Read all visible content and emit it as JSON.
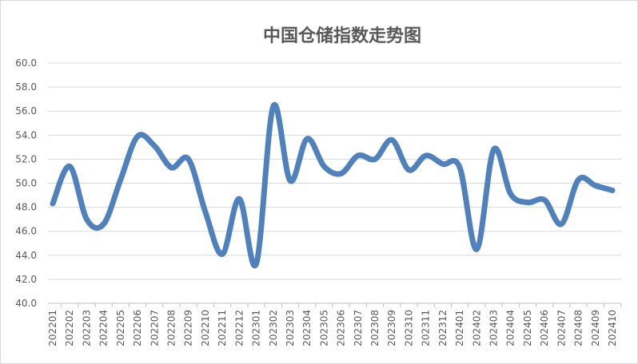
{
  "chart_data": {
    "type": "line",
    "title": "中国仓储指数走势图",
    "xlabel": "",
    "ylabel": "",
    "ylim": [
      40,
      60
    ],
    "ytick_step": 2,
    "grid": true,
    "smooth": true,
    "line_color": "#4f81bd",
    "categories": [
      "202201",
      "202202",
      "202203",
      "202204",
      "202205",
      "202206",
      "202207",
      "202208",
      "202209",
      "202210",
      "202211",
      "202212",
      "202301",
      "202302",
      "202303",
      "202304",
      "202305",
      "202306",
      "202307",
      "202308",
      "202309",
      "202310",
      "202311",
      "202312",
      "202401",
      "202402",
      "202403",
      "202404",
      "202405",
      "202406",
      "202407",
      "202408",
      "202409",
      "202410"
    ],
    "values": [
      48.3,
      51.4,
      47.0,
      46.6,
      50.3,
      53.9,
      53.1,
      51.3,
      52.0,
      47.6,
      44.1,
      48.7,
      43.3,
      56.4,
      50.2,
      53.7,
      51.4,
      50.8,
      52.3,
      52.0,
      53.6,
      51.1,
      52.3,
      51.6,
      51.3,
      44.5,
      52.8,
      49.1,
      48.4,
      48.6,
      46.6,
      50.3,
      49.8,
      49.4
    ]
  }
}
